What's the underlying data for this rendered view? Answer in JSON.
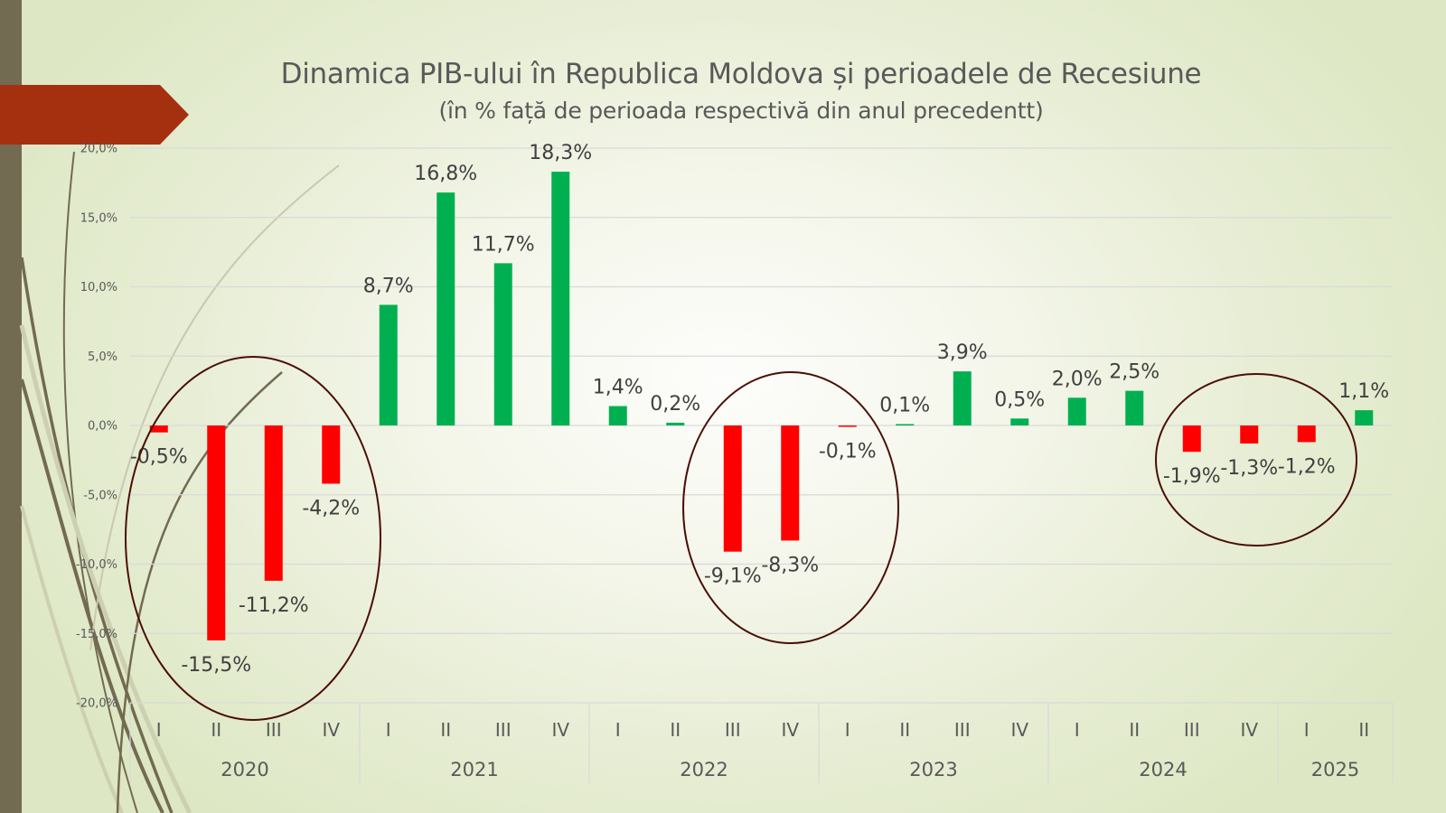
{
  "slide": {
    "title": "Dinamica PIB-ului în Republica Moldova și perioadele de Recesiune",
    "subtitle": "(în % față de perioada respectivă din anul precedentt)"
  },
  "colors": {
    "positive": "#00b050",
    "negative": "#ff0000",
    "highlight_ellipse": "#4a0f05",
    "banner": "#a53010",
    "left_strip": "#736a52"
  },
  "chart_data": {
    "type": "bar",
    "title": "Dinamica PIB-ului în Republica Moldova și perioadele de Recesiune",
    "subtitle": "(în % față de perioada respectivă din anul precedentt)",
    "xlabel": "",
    "ylabel": "",
    "ylim": [
      -20,
      20
    ],
    "ytick_step": 5,
    "yticks": [
      "20,0%",
      "15,0%",
      "10,0%",
      "5,0%",
      "0,0%",
      "-5,0%",
      "-10,0%",
      "-15,0%",
      "-20,0%"
    ],
    "grid": true,
    "groups": [
      {
        "year": "2020",
        "quarters": [
          "I",
          "II",
          "III",
          "IV"
        ]
      },
      {
        "year": "2021",
        "quarters": [
          "I",
          "II",
          "III",
          "IV"
        ]
      },
      {
        "year": "2022",
        "quarters": [
          "I",
          "II",
          "III",
          "IV"
        ]
      },
      {
        "year": "2023",
        "quarters": [
          "I",
          "II",
          "III",
          "IV"
        ]
      },
      {
        "year": "2024",
        "quarters": [
          "I",
          "II",
          "III",
          "IV"
        ]
      },
      {
        "year": "2025",
        "quarters": [
          "I",
          "II"
        ]
      }
    ],
    "values": [
      -0.5,
      -15.5,
      -11.2,
      -4.2,
      8.7,
      16.8,
      11.7,
      18.3,
      1.4,
      0.2,
      -9.1,
      -8.3,
      -0.1,
      0.1,
      3.9,
      0.5,
      2.0,
      2.5,
      -1.9,
      -1.3,
      -1.2,
      1.1
    ],
    "data_labels": [
      "-0,5%",
      "-15,5%",
      "-11,2%",
      "-4,2%",
      "8,7%",
      "16,8%",
      "11,7%",
      "18,3%",
      "1,4%",
      "0,2%",
      "-9,1%",
      "-8,3%",
      "-0,1%",
      "0,1%",
      "3,9%",
      "0,5%",
      "2,0%",
      "2,5%",
      "-1,9%",
      "-1,3%",
      "-1,2%",
      "1,1%"
    ],
    "annotations": [
      {
        "type": "ellipse",
        "label": "recession-2020",
        "covers": [
          "2020 I",
          "2020 IV"
        ]
      },
      {
        "type": "ellipse",
        "label": "recession-2022",
        "covers": [
          "2022 III",
          "2023 I"
        ]
      },
      {
        "type": "ellipse",
        "label": "recession-2024",
        "covers": [
          "2024 III",
          "2025 I"
        ]
      }
    ]
  }
}
